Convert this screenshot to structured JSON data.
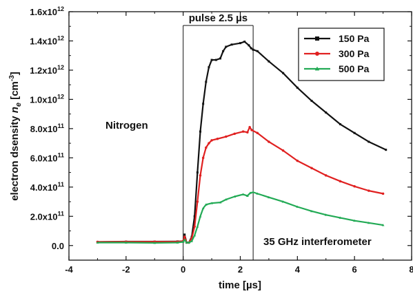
{
  "chart_data": {
    "type": "line",
    "xlabel": "time [µs]",
    "ylabel": "electron dsensity n",
    "ylabel_sub": "e",
    "ylabel_unit": " [cm",
    "ylabel_unit_exp": "-3",
    "ylabel_close": "]",
    "xlim": [
      -4,
      8
    ],
    "ylim": [
      -0.1,
      1.6
    ],
    "x_ticks": [
      -4,
      -2,
      0,
      2,
      4,
      6,
      8
    ],
    "x_tick_labels": [
      "-4",
      "-2",
      "0",
      "2",
      "4",
      "6",
      "8"
    ],
    "y_ticks": [
      {
        "value": 1.6,
        "mantissa": "1.6",
        "exp": "12"
      },
      {
        "value": 1.4,
        "mantissa": "1.4",
        "exp": "12"
      },
      {
        "value": 1.2,
        "mantissa": "1.2",
        "exp": "12"
      },
      {
        "value": 1.0,
        "mantissa": "1.0",
        "exp": "12"
      },
      {
        "value": 0.8,
        "mantissa": "8.0",
        "exp": "11"
      },
      {
        "value": 0.6,
        "mantissa": "6.0",
        "exp": "11"
      },
      {
        "value": 0.4,
        "mantissa": "4.0",
        "exp": "11"
      },
      {
        "value": 0.2,
        "mantissa": "2.0",
        "exp": "11"
      },
      {
        "value": 0.0,
        "mantissa": "0.0",
        "exp": ""
      }
    ],
    "y_unit": "1e12 cm^-3",
    "grid": false,
    "legend_position": "top-right",
    "series": [
      {
        "name": "150 Pa",
        "color": "#111111",
        "marker": "square",
        "points": [
          [
            -3.0,
            0.025
          ],
          [
            -2.0,
            0.027
          ],
          [
            -1.0,
            0.027
          ],
          [
            -0.2,
            0.028
          ],
          [
            0.0,
            0.03
          ],
          [
            0.05,
            0.075
          ],
          [
            0.12,
            0.02
          ],
          [
            0.2,
            0.02
          ],
          [
            0.3,
            0.06
          ],
          [
            0.4,
            0.2
          ],
          [
            0.5,
            0.5
          ],
          [
            0.6,
            0.78
          ],
          [
            0.7,
            0.97
          ],
          [
            0.8,
            1.12
          ],
          [
            0.9,
            1.22
          ],
          [
            1.0,
            1.27
          ],
          [
            1.15,
            1.27
          ],
          [
            1.3,
            1.28
          ],
          [
            1.4,
            1.33
          ],
          [
            1.5,
            1.36
          ],
          [
            1.7,
            1.375
          ],
          [
            2.0,
            1.385
          ],
          [
            2.15,
            1.395
          ],
          [
            2.3,
            1.37
          ],
          [
            2.38,
            1.35
          ],
          [
            2.45,
            1.34
          ],
          [
            2.6,
            1.33
          ],
          [
            3.0,
            1.26
          ],
          [
            3.5,
            1.18
          ],
          [
            4.0,
            1.08
          ],
          [
            4.5,
            0.99
          ],
          [
            5.0,
            0.91
          ],
          [
            5.5,
            0.83
          ],
          [
            6.0,
            0.77
          ],
          [
            6.5,
            0.71
          ],
          [
            7.1,
            0.655
          ]
        ]
      },
      {
        "name": "300 Pa",
        "color": "#e02020",
        "marker": "circle",
        "points": [
          [
            -3.0,
            0.025
          ],
          [
            -2.0,
            0.026
          ],
          [
            -1.0,
            0.026
          ],
          [
            -0.2,
            0.026
          ],
          [
            0.0,
            0.03
          ],
          [
            0.05,
            0.06
          ],
          [
            0.12,
            0.02
          ],
          [
            0.2,
            0.02
          ],
          [
            0.3,
            0.05
          ],
          [
            0.4,
            0.13
          ],
          [
            0.5,
            0.3
          ],
          [
            0.6,
            0.48
          ],
          [
            0.7,
            0.6
          ],
          [
            0.8,
            0.67
          ],
          [
            0.9,
            0.7
          ],
          [
            1.0,
            0.72
          ],
          [
            1.2,
            0.73
          ],
          [
            1.5,
            0.745
          ],
          [
            1.8,
            0.765
          ],
          [
            2.1,
            0.78
          ],
          [
            2.25,
            0.775
          ],
          [
            2.33,
            0.81
          ],
          [
            2.4,
            0.79
          ],
          [
            2.6,
            0.77
          ],
          [
            3.0,
            0.71
          ],
          [
            3.5,
            0.65
          ],
          [
            4.0,
            0.58
          ],
          [
            4.5,
            0.53
          ],
          [
            5.0,
            0.48
          ],
          [
            5.5,
            0.44
          ],
          [
            6.0,
            0.405
          ],
          [
            6.5,
            0.375
          ],
          [
            7.0,
            0.355
          ]
        ]
      },
      {
        "name": "500 Pa",
        "color": "#22aa55",
        "marker": "triangle",
        "points": [
          [
            -3.0,
            0.02
          ],
          [
            -2.0,
            0.02
          ],
          [
            -1.0,
            0.018
          ],
          [
            -0.2,
            0.02
          ],
          [
            0.0,
            0.025
          ],
          [
            0.05,
            0.04
          ],
          [
            0.12,
            0.02
          ],
          [
            0.2,
            0.02
          ],
          [
            0.3,
            0.03
          ],
          [
            0.4,
            0.07
          ],
          [
            0.5,
            0.13
          ],
          [
            0.6,
            0.2
          ],
          [
            0.7,
            0.255
          ],
          [
            0.8,
            0.28
          ],
          [
            1.0,
            0.29
          ],
          [
            1.3,
            0.295
          ],
          [
            1.5,
            0.315
          ],
          [
            1.8,
            0.335
          ],
          [
            2.1,
            0.35
          ],
          [
            2.25,
            0.34
          ],
          [
            2.35,
            0.36
          ],
          [
            2.45,
            0.365
          ],
          [
            2.6,
            0.355
          ],
          [
            3.0,
            0.33
          ],
          [
            3.5,
            0.3
          ],
          [
            4.0,
            0.265
          ],
          [
            4.5,
            0.235
          ],
          [
            5.0,
            0.21
          ],
          [
            5.5,
            0.19
          ],
          [
            6.0,
            0.17
          ],
          [
            6.5,
            0.155
          ],
          [
            7.0,
            0.14
          ]
        ]
      }
    ],
    "annotations": {
      "pulse_label": "pulse 2.5 µs",
      "pulse_start": 0.0,
      "pulse_end": 2.45,
      "gas_label": "Nitrogen",
      "instrument_label": "35 GHz  interferometer"
    }
  }
}
